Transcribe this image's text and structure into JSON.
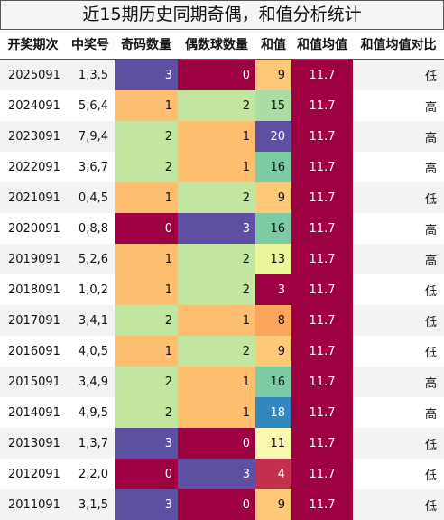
{
  "title": "近15期历史同期奇偶，和值分析统计",
  "headers": [
    "开奖期次",
    "中奖号",
    "奇码数量",
    "偶数球数量",
    "和值",
    "和值均值",
    "和值均值对比"
  ],
  "rows": [
    {
      "issue": "2025091",
      "numbers": "1,3,5",
      "odd": "3",
      "even": "0",
      "sum": "9",
      "avg": "11.7",
      "cmp": "低"
    },
    {
      "issue": "2024091",
      "numbers": "5,6,4",
      "odd": "1",
      "even": "2",
      "sum": "15",
      "avg": "11.7",
      "cmp": "高"
    },
    {
      "issue": "2023091",
      "numbers": "7,9,4",
      "odd": "2",
      "even": "1",
      "sum": "20",
      "avg": "11.7",
      "cmp": "高"
    },
    {
      "issue": "2022091",
      "numbers": "3,6,7",
      "odd": "2",
      "even": "1",
      "sum": "16",
      "avg": "11.7",
      "cmp": "高"
    },
    {
      "issue": "2021091",
      "numbers": "0,4,5",
      "odd": "1",
      "even": "2",
      "sum": "9",
      "avg": "11.7",
      "cmp": "低"
    },
    {
      "issue": "2020091",
      "numbers": "0,8,8",
      "odd": "0",
      "even": "3",
      "sum": "16",
      "avg": "11.7",
      "cmp": "高"
    },
    {
      "issue": "2019091",
      "numbers": "5,2,6",
      "odd": "1",
      "even": "2",
      "sum": "13",
      "avg": "11.7",
      "cmp": "高"
    },
    {
      "issue": "2018091",
      "numbers": "1,0,2",
      "odd": "1",
      "even": "2",
      "sum": "3",
      "avg": "11.7",
      "cmp": "低"
    },
    {
      "issue": "2017091",
      "numbers": "3,4,1",
      "odd": "2",
      "even": "1",
      "sum": "8",
      "avg": "11.7",
      "cmp": "低"
    },
    {
      "issue": "2016091",
      "numbers": "4,0,5",
      "odd": "1",
      "even": "2",
      "sum": "9",
      "avg": "11.7",
      "cmp": "低"
    },
    {
      "issue": "2015091",
      "numbers": "3,4,9",
      "odd": "2",
      "even": "1",
      "sum": "16",
      "avg": "11.7",
      "cmp": "高"
    },
    {
      "issue": "2014091",
      "numbers": "4,9,5",
      "odd": "2",
      "even": "1",
      "sum": "18",
      "avg": "11.7",
      "cmp": "高"
    },
    {
      "issue": "2013091",
      "numbers": "1,3,7",
      "odd": "3",
      "even": "0",
      "sum": "11",
      "avg": "11.7",
      "cmp": "低"
    },
    {
      "issue": "2012091",
      "numbers": "2,2,0",
      "odd": "0",
      "even": "3",
      "sum": "4",
      "avg": "11.7",
      "cmp": "低"
    },
    {
      "issue": "2011091",
      "numbers": "3,1,5",
      "odd": "3",
      "even": "0",
      "sum": "9",
      "avg": "11.7",
      "cmp": "低"
    }
  ],
  "count_colors": {
    "0": {
      "bg": "#9e0142",
      "fg": "#ffffff"
    },
    "1": {
      "bg": "#fdbf6f",
      "fg": "#111111"
    },
    "2": {
      "bg": "#c2e6a0",
      "fg": "#111111"
    },
    "3": {
      "bg": "#5e4fa2",
      "fg": "#ffffff"
    }
  },
  "sum_colors": {
    "3": {
      "bg": "#9e0142",
      "fg": "#ffffff"
    },
    "4": {
      "bg": "#c2304e",
      "fg": "#ffffff"
    },
    "8": {
      "bg": "#fca55d",
      "fg": "#111111"
    },
    "9": {
      "bg": "#fdc978",
      "fg": "#111111"
    },
    "11": {
      "bg": "#fbf8b0",
      "fg": "#111111"
    },
    "13": {
      "bg": "#eaf59c",
      "fg": "#111111"
    },
    "15": {
      "bg": "#aadca4",
      "fg": "#111111"
    },
    "16": {
      "bg": "#7bcba4",
      "fg": "#111111"
    },
    "18": {
      "bg": "#3288bd",
      "fg": "#ffffff"
    },
    "20": {
      "bg": "#5e4fa2",
      "fg": "#ffffff"
    }
  }
}
